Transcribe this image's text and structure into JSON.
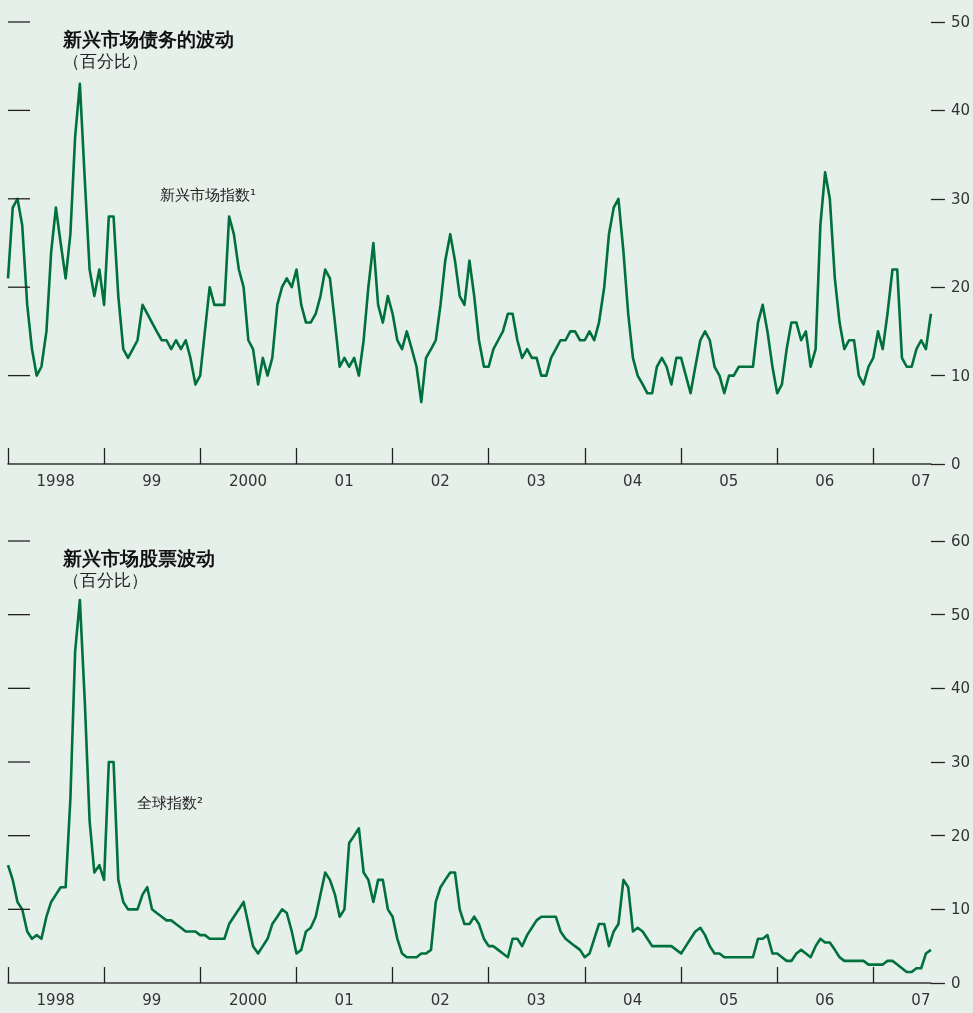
{
  "chart_data": [
    {
      "type": "line",
      "title": "新兴市场债务的波动",
      "subtitle": "（百分比）",
      "annotations": [
        "新兴市场指数¹"
      ],
      "x": [
        "1998-01-01",
        "1998-01-19",
        "1998-02-06",
        "1998-02-24",
        "1998-03-15",
        "1998-04-02",
        "1998-04-20",
        "1998-05-08",
        "1998-05-27",
        "1998-06-14",
        "1998-07-02",
        "1998-07-20",
        "1998-08-08",
        "1998-08-26",
        "1998-09-13",
        "1998-10-01",
        "1998-10-20",
        "1998-11-07",
        "1998-11-25",
        "1998-12-14",
        "1999-01-01",
        "1999-01-19",
        "1999-02-06",
        "1999-02-24",
        "1999-03-15",
        "1999-04-02",
        "1999-04-20",
        "1999-05-08",
        "1999-05-27",
        "1999-06-14",
        "1999-07-02",
        "1999-07-20",
        "1999-08-08",
        "1999-08-26",
        "1999-09-13",
        "1999-10-01",
        "1999-10-20",
        "1999-11-07",
        "1999-11-25",
        "1999-12-14",
        "2000-01-01",
        "2000-01-19",
        "2000-02-06",
        "2000-02-24",
        "2000-03-15",
        "2000-04-02",
        "2000-04-20",
        "2000-05-08",
        "2000-05-27",
        "2000-06-14",
        "2000-07-02",
        "2000-07-20",
        "2000-08-08",
        "2000-08-26",
        "2000-09-13",
        "2000-10-01",
        "2000-10-20",
        "2000-11-07",
        "2000-11-25",
        "2000-12-14",
        "2001-01-01",
        "2001-01-19",
        "2001-02-06",
        "2001-02-24",
        "2001-03-15",
        "2001-04-02",
        "2001-04-20",
        "2001-05-08",
        "2001-05-27",
        "2001-06-14",
        "2001-07-02",
        "2001-07-20",
        "2001-08-08",
        "2001-08-26",
        "2001-09-13",
        "2001-10-01",
        "2001-10-20",
        "2001-11-07",
        "2001-11-25",
        "2001-12-14",
        "2002-01-01",
        "2002-01-19",
        "2002-02-06",
        "2002-02-24",
        "2002-03-15",
        "2002-04-02",
        "2002-04-20",
        "2002-05-08",
        "2002-05-27",
        "2002-06-14",
        "2002-07-02",
        "2002-07-20",
        "2002-08-08",
        "2002-08-26",
        "2002-09-13",
        "2002-10-01",
        "2002-10-20",
        "2002-11-07",
        "2002-11-25",
        "2002-12-14",
        "2003-01-01",
        "2003-01-19",
        "2003-02-06",
        "2003-02-24",
        "2003-03-15",
        "2003-04-02",
        "2003-04-20",
        "2003-05-08",
        "2003-05-27",
        "2003-06-14",
        "2003-07-02",
        "2003-07-20",
        "2003-08-08",
        "2003-08-26",
        "2003-09-13",
        "2003-10-01",
        "2003-10-20",
        "2003-11-07",
        "2003-11-25",
        "2003-12-14",
        "2004-01-01",
        "2004-01-19",
        "2004-02-06",
        "2004-02-24",
        "2004-03-15",
        "2004-04-02",
        "2004-04-20",
        "2004-05-08",
        "2004-05-27",
        "2004-06-14",
        "2004-07-02",
        "2004-07-20",
        "2004-08-08",
        "2004-08-26",
        "2004-09-13",
        "2004-10-01",
        "2004-10-20",
        "2004-11-07",
        "2004-11-25",
        "2004-12-14",
        "2005-01-01",
        "2005-01-19",
        "2005-02-06",
        "2005-02-24",
        "2005-03-15",
        "2005-04-02",
        "2005-04-20",
        "2005-05-08",
        "2005-05-27",
        "2005-06-14",
        "2005-07-02",
        "2005-07-20",
        "2005-08-08",
        "2005-08-26",
        "2005-09-13",
        "2005-10-01",
        "2005-10-20",
        "2005-11-07",
        "2005-11-25",
        "2005-12-14",
        "2006-01-01",
        "2006-01-19",
        "2006-02-06",
        "2006-02-24",
        "2006-03-15",
        "2006-04-02",
        "2006-04-20",
        "2006-05-08",
        "2006-05-27",
        "2006-06-14",
        "2006-07-02",
        "2006-07-20",
        "2006-08-08",
        "2006-08-26",
        "2006-09-13",
        "2006-10-01",
        "2006-10-20",
        "2006-11-07",
        "2006-11-25",
        "2006-12-14",
        "2007-01-01",
        "2007-01-19",
        "2007-02-06",
        "2007-02-24",
        "2007-03-15",
        "2007-04-02",
        "2007-04-20",
        "2007-05-08",
        "2007-05-27",
        "2007-06-14",
        "2007-07-02",
        "2007-07-20",
        "2007-08-08"
      ],
      "series": [
        {
          "color": "#00703c",
          "values": [
            21,
            29,
            30,
            27,
            18,
            13,
            10,
            11,
            15,
            24,
            29,
            25,
            21,
            26,
            37,
            43,
            32,
            22,
            19,
            22,
            18,
            28,
            28,
            19,
            13,
            12,
            13,
            14,
            18,
            17,
            16,
            15,
            14,
            14,
            13,
            14,
            13,
            14,
            12,
            9,
            10,
            15,
            20,
            18,
            18,
            18,
            28,
            26,
            22,
            20,
            14,
            13,
            9,
            12,
            10,
            12,
            18,
            20,
            21,
            20,
            22,
            18,
            16,
            16,
            17,
            19,
            22,
            21,
            16,
            11,
            12,
            11,
            12,
            10,
            14,
            20,
            25,
            18,
            16,
            19,
            17,
            14,
            13,
            15,
            13,
            11,
            7,
            12,
            13,
            14,
            18,
            23,
            26,
            23,
            19,
            18,
            23,
            19,
            14,
            11,
            11,
            13,
            14,
            15,
            17,
            17,
            14,
            12,
            13,
            12,
            12,
            10,
            10,
            12,
            13,
            14,
            14,
            15,
            15,
            14,
            14,
            15,
            14,
            16,
            20,
            26,
            29,
            30,
            24,
            17,
            12,
            10,
            9,
            8,
            8,
            11,
            12,
            11,
            9,
            12,
            12,
            10,
            8,
            11,
            14,
            15,
            14,
            11,
            10,
            8,
            10,
            10,
            11,
            11,
            11,
            11,
            16,
            18,
            15,
            11,
            8,
            9,
            13,
            16,
            16,
            14,
            15,
            11,
            13,
            27,
            33,
            30,
            21,
            16,
            13,
            14,
            14,
            10,
            9,
            11,
            12,
            15,
            13,
            17,
            22,
            22,
            12,
            11,
            11,
            13,
            14,
            13,
            17
          ]
        }
      ],
      "xlim": [
        "1998-01-01",
        "2007-08-08"
      ],
      "xticks": [
        {
          "value": "1998",
          "label": null
        },
        {
          "value": "1998-07",
          "label": "1998"
        },
        {
          "value": "1999",
          "label": null
        },
        {
          "value": "1999-07",
          "label": "99"
        },
        {
          "value": "2000",
          "label": null
        },
        {
          "value": "2000-07",
          "label": "2000"
        },
        {
          "value": "2001",
          "label": null
        },
        {
          "value": "2001-07",
          "label": "01"
        },
        {
          "value": "2002",
          "label": null
        },
        {
          "value": "2002-07",
          "label": "02"
        },
        {
          "value": "2003",
          "label": null
        },
        {
          "value": "2003-07",
          "label": "03"
        },
        {
          "value": "2004",
          "label": null
        },
        {
          "value": "2004-07",
          "label": "04"
        },
        {
          "value": "2005",
          "label": null
        },
        {
          "value": "2005-07",
          "label": "05"
        },
        {
          "value": "2006",
          "label": null
        },
        {
          "value": "2006-07",
          "label": "06"
        },
        {
          "value": "2007",
          "label": null
        },
        {
          "value": "2007-07",
          "label": "07"
        }
      ],
      "ylim": [
        0,
        50
      ],
      "yticks": [
        0,
        10,
        20,
        30,
        40,
        50
      ]
    },
    {
      "type": "line",
      "title": "新兴市场股票波动",
      "subtitle": "（百分比）",
      "annotations": [
        "全球指数²"
      ],
      "x": [
        "1998-01-01",
        "1998-01-19",
        "1998-02-06",
        "1998-02-24",
        "1998-03-15",
        "1998-04-02",
        "1998-04-20",
        "1998-05-08",
        "1998-05-27",
        "1998-06-14",
        "1998-07-02",
        "1998-07-20",
        "1998-08-08",
        "1998-08-26",
        "1998-09-13",
        "1998-10-01",
        "1998-10-20",
        "1998-11-07",
        "1998-11-25",
        "1998-12-14",
        "1999-01-01",
        "1999-01-19",
        "1999-02-06",
        "1999-02-24",
        "1999-03-15",
        "1999-04-02",
        "1999-04-20",
        "1999-05-08",
        "1999-05-27",
        "1999-06-14",
        "1999-07-02",
        "1999-07-20",
        "1999-08-08",
        "1999-08-26",
        "1999-09-13",
        "1999-10-01",
        "1999-10-20",
        "1999-11-07",
        "1999-11-25",
        "1999-12-14",
        "2000-01-01",
        "2000-01-19",
        "2000-02-06",
        "2000-02-24",
        "2000-03-15",
        "2000-04-02",
        "2000-04-20",
        "2000-05-08",
        "2000-05-27",
        "2000-06-14",
        "2000-07-02",
        "2000-07-20",
        "2000-08-08",
        "2000-08-26",
        "2000-09-13",
        "2000-10-01",
        "2000-10-20",
        "2000-11-07",
        "2000-11-25",
        "2000-12-14",
        "2001-01-01",
        "2001-01-19",
        "2001-02-06",
        "2001-02-24",
        "2001-03-15",
        "2001-04-02",
        "2001-04-20",
        "2001-05-08",
        "2001-05-27",
        "2001-06-14",
        "2001-07-02",
        "2001-07-20",
        "2001-08-08",
        "2001-08-26",
        "2001-09-13",
        "2001-10-01",
        "2001-10-20",
        "2001-11-07",
        "2001-11-25",
        "2001-12-14",
        "2002-01-01",
        "2002-01-19",
        "2002-02-06",
        "2002-02-24",
        "2002-03-15",
        "2002-04-02",
        "2002-04-20",
        "2002-05-08",
        "2002-05-27",
        "2002-06-14",
        "2002-07-02",
        "2002-07-20",
        "2002-08-08",
        "2002-08-26",
        "2002-09-13",
        "2002-10-01",
        "2002-10-20",
        "2002-11-07",
        "2002-11-25",
        "2002-12-14",
        "2003-01-01",
        "2003-01-19",
        "2003-02-06",
        "2003-02-24",
        "2003-03-15",
        "2003-04-02",
        "2003-04-20",
        "2003-05-08",
        "2003-05-27",
        "2003-06-14",
        "2003-07-02",
        "2003-07-20",
        "2003-08-08",
        "2003-08-26",
        "2003-09-13",
        "2003-10-01",
        "2003-10-20",
        "2003-11-07",
        "2003-11-25",
        "2003-12-14",
        "2004-01-01",
        "2004-01-19",
        "2004-02-06",
        "2004-02-24",
        "2004-03-15",
        "2004-04-02",
        "2004-04-20",
        "2004-05-08",
        "2004-05-27",
        "2004-06-14",
        "2004-07-02",
        "2004-07-20",
        "2004-08-08",
        "2004-08-26",
        "2004-09-13",
        "2004-10-01",
        "2004-10-20",
        "2004-11-07",
        "2004-11-25",
        "2004-12-14",
        "2005-01-01",
        "2005-01-19",
        "2005-02-06",
        "2005-02-24",
        "2005-03-15",
        "2005-04-02",
        "2005-04-20",
        "2005-05-08",
        "2005-05-27",
        "2005-06-14",
        "2005-07-02",
        "2005-07-20",
        "2005-08-08",
        "2005-08-26",
        "2005-09-13",
        "2005-10-01",
        "2005-10-20",
        "2005-11-07",
        "2005-11-25",
        "2005-12-14",
        "2006-01-01",
        "2006-01-19",
        "2006-02-06",
        "2006-02-24",
        "2006-03-15",
        "2006-04-02",
        "2006-04-20",
        "2006-05-08",
        "2006-05-27",
        "2006-06-14",
        "2006-07-02",
        "2006-07-20",
        "2006-08-08",
        "2006-08-26",
        "2006-09-13",
        "2006-10-01",
        "2006-10-20",
        "2006-11-07",
        "2006-11-25",
        "2006-12-14",
        "2007-01-01",
        "2007-01-19",
        "2007-02-06",
        "2007-02-24",
        "2007-03-15",
        "2007-04-02",
        "2007-04-20",
        "2007-05-08",
        "2007-05-27",
        "2007-06-14",
        "2007-07-02",
        "2007-07-20",
        "2007-08-08"
      ],
      "series": [
        {
          "color": "#00703c",
          "values": [
            16,
            14,
            11,
            10,
            7,
            6,
            6.5,
            6,
            9,
            11,
            12,
            13,
            13,
            25,
            45,
            52,
            38,
            22,
            15,
            16,
            14,
            30,
            30,
            14,
            11,
            10,
            10,
            10,
            12,
            13,
            10,
            9.5,
            9,
            8.5,
            8.5,
            8,
            7.5,
            7,
            7,
            7,
            6.5,
            6.5,
            6,
            6,
            6,
            6,
            8,
            9,
            10,
            11,
            8,
            5,
            4,
            5,
            6,
            8,
            9,
            10,
            9.5,
            7,
            4,
            4.5,
            7,
            7.5,
            9,
            12,
            15,
            14,
            12,
            9,
            10,
            19,
            20,
            21,
            15,
            14,
            11,
            14,
            14,
            10,
            9,
            6,
            4,
            3.5,
            3.5,
            3.5,
            4,
            4,
            4.5,
            11,
            13,
            14,
            15,
            15,
            10,
            8,
            8,
            9,
            8,
            6,
            5,
            5,
            4.5,
            4,
            3.5,
            6,
            6,
            5,
            6.5,
            7.5,
            8.5,
            9,
            9,
            9,
            9,
            7,
            6,
            5.5,
            5,
            4.5,
            3.5,
            4,
            6,
            8,
            8,
            5,
            7,
            8,
            14,
            13,
            7,
            7.5,
            7,
            6,
            5,
            5,
            5,
            5,
            5,
            4.5,
            4,
            5,
            6,
            7,
            7.5,
            6.5,
            5,
            4,
            4,
            3.5,
            3.5,
            3.5,
            3.5,
            3.5,
            3.5,
            3.5,
            6,
            6,
            6.5,
            4,
            4,
            3.5,
            3,
            3,
            4,
            4.5,
            4,
            3.5,
            5,
            6,
            5.5,
            5.5,
            4.5,
            3.5,
            3,
            3,
            3,
            3,
            3,
            2.5,
            2.5,
            2.5,
            2.5,
            3,
            3,
            2.5,
            2,
            1.5,
            1.5,
            2,
            2,
            4,
            4.5
          ]
        }
      ],
      "xlim": [
        "1998-01-01",
        "2007-08-08"
      ],
      "xticks": [
        {
          "value": "1998",
          "label": null
        },
        {
          "value": "1998-07",
          "label": "1998"
        },
        {
          "value": "1999",
          "label": null
        },
        {
          "value": "1999-07",
          "label": "99"
        },
        {
          "value": "2000",
          "label": null
        },
        {
          "value": "2000-07",
          "label": "2000"
        },
        {
          "value": "2001",
          "label": null
        },
        {
          "value": "2001-07",
          "label": "01"
        },
        {
          "value": "2002",
          "label": null
        },
        {
          "value": "2002-07",
          "label": "02"
        },
        {
          "value": "2003",
          "label": null
        },
        {
          "value": "2003-07",
          "label": "03"
        },
        {
          "value": "2004",
          "label": null
        },
        {
          "value": "2004-07",
          "label": "04"
        },
        {
          "value": "2005",
          "label": null
        },
        {
          "value": "2005-07",
          "label": "05"
        },
        {
          "value": "2006",
          "label": null
        },
        {
          "value": "2006-07",
          "label": "06"
        },
        {
          "value": "2007",
          "label": null
        },
        {
          "value": "2007-07",
          "label": "07"
        }
      ],
      "ylim": [
        0,
        60
      ],
      "yticks": [
        0,
        10,
        20,
        30,
        40,
        50,
        60
      ]
    }
  ]
}
